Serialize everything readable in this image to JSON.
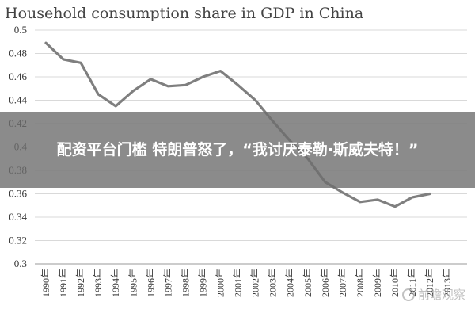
{
  "banner": {
    "text": "配资平台门槛 特朗普怒了，“我讨厌泰勒·斯威夫特！”"
  },
  "watermark": {
    "text": "前瞻观察",
    "icon": "wechat-icon"
  },
  "colors": {
    "line": "#7f7f7f",
    "grid": "#d9d9d9",
    "banner_bg": "#6e6e6e"
  },
  "chart_data": {
    "type": "line",
    "title": "Household consumption share in GDP in China",
    "xlabel": "",
    "ylabel": "",
    "categories": [
      "1990年",
      "1991年",
      "1992年",
      "1993年",
      "1994年",
      "1995年",
      "1996年",
      "1997年",
      "1998年",
      "1999年",
      "2000年",
      "2001年",
      "2002年",
      "2003年",
      "2004年",
      "2005年",
      "2006年",
      "2007年",
      "2008年",
      "2009年",
      "2010年",
      "2011年",
      "2012年",
      "2013年"
    ],
    "series": [
      {
        "values": [
          0.489,
          0.475,
          0.472,
          0.445,
          0.435,
          0.448,
          0.458,
          0.452,
          0.453,
          0.46,
          0.465,
          0.453,
          0.44,
          0.422,
          0.405,
          0.39,
          0.37,
          0.361,
          0.353,
          0.355,
          0.349,
          0.357,
          0.36,
          null
        ]
      }
    ],
    "ylim": [
      0.3,
      0.5
    ],
    "yticks": [
      "0.5",
      "0.48",
      "0.46",
      "0.44",
      "0.42",
      "0.4",
      "0.38",
      "0.36",
      "0.34",
      "0.32",
      "0.3"
    ],
    "grid": "horizontal",
    "legend": "none"
  }
}
